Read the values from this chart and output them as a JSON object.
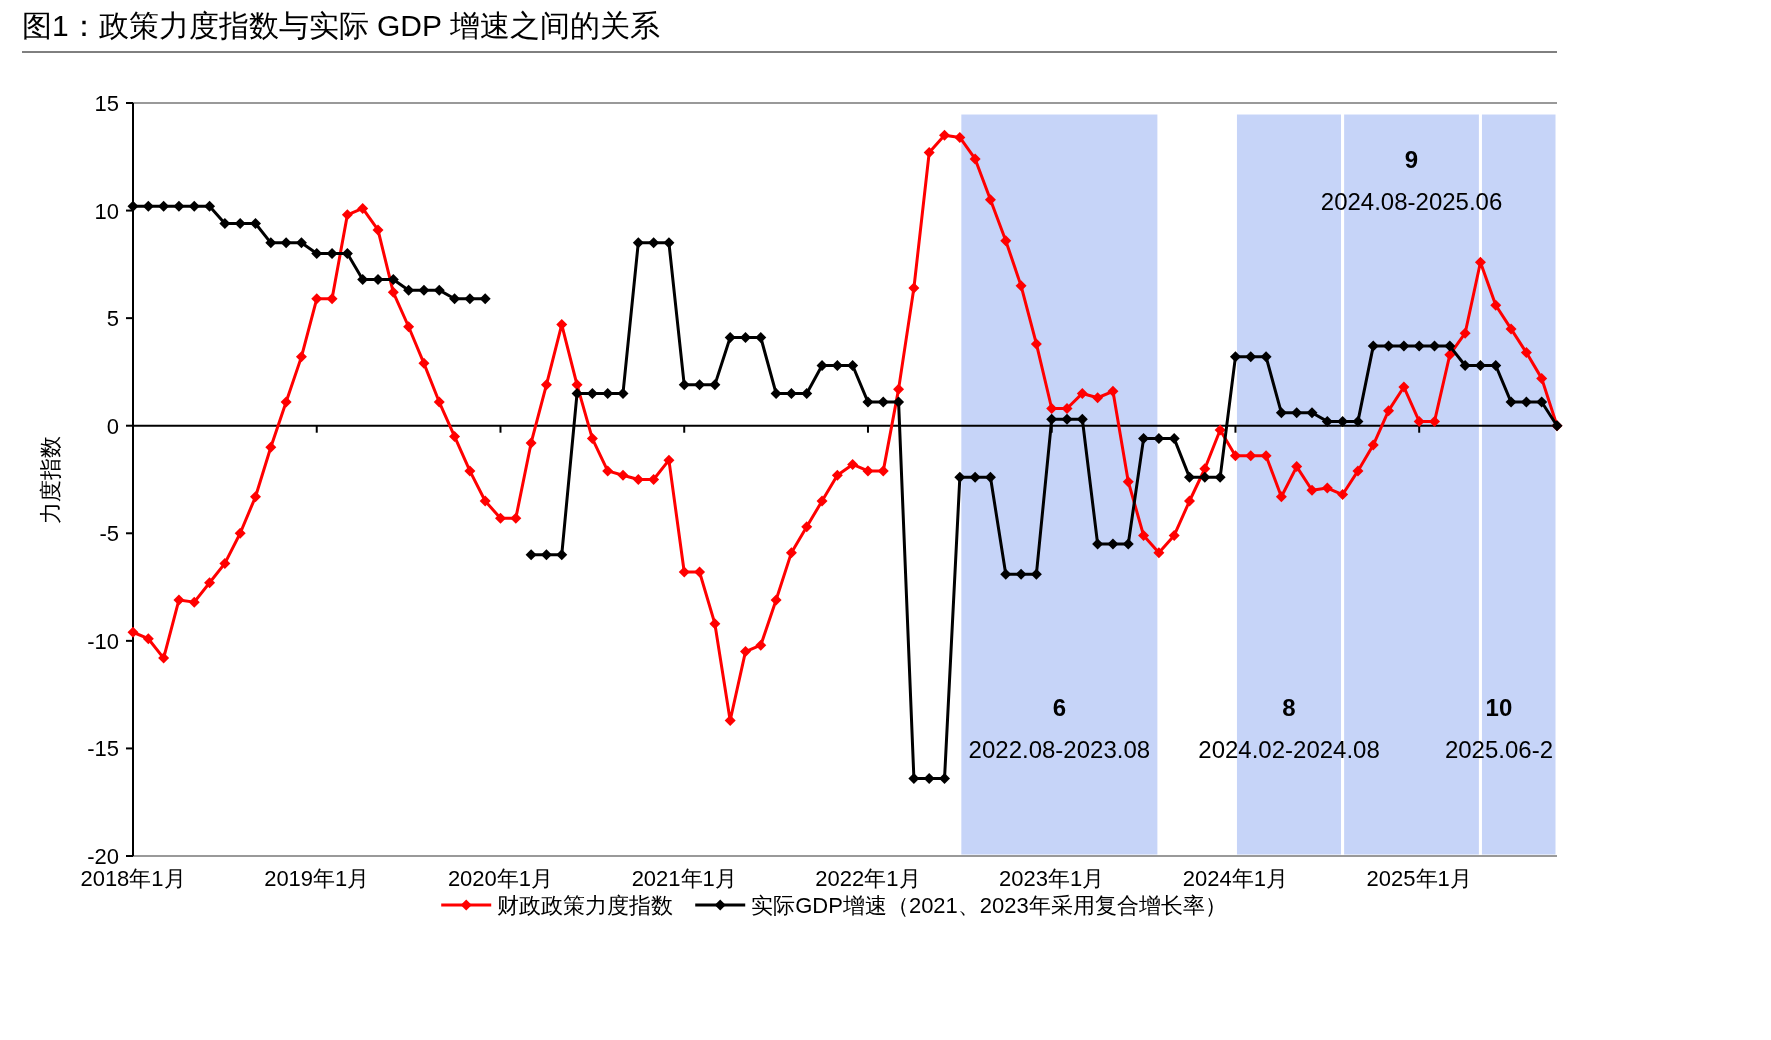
{
  "chart_data": {
    "type": "line",
    "title": "图1：政策力度指数与实际 GDP 增速之间的关系",
    "ylabel": "力度指数",
    "x": [
      "2018-01",
      "2018-02",
      "2018-03",
      "2018-04",
      "2018-05",
      "2018-06",
      "2018-07",
      "2018-08",
      "2018-09",
      "2018-10",
      "2018-11",
      "2018-12",
      "2019-01",
      "2019-02",
      "2019-03",
      "2019-04",
      "2019-05",
      "2019-06",
      "2019-07",
      "2019-08",
      "2019-09",
      "2019-10",
      "2019-11",
      "2019-12",
      "2020-01",
      "2020-02",
      "2020-03",
      "2020-04",
      "2020-05",
      "2020-06",
      "2020-07",
      "2020-08",
      "2020-09",
      "2020-10",
      "2020-11",
      "2020-12",
      "2021-01",
      "2021-02",
      "2021-03",
      "2021-04",
      "2021-05",
      "2021-06",
      "2021-07",
      "2021-08",
      "2021-09",
      "2021-10",
      "2021-11",
      "2021-12",
      "2022-01",
      "2022-02",
      "2022-03",
      "2022-04",
      "2022-05",
      "2022-06",
      "2022-07",
      "2022-08",
      "2022-09",
      "2022-10",
      "2022-11",
      "2022-12",
      "2023-01",
      "2023-02",
      "2023-03",
      "2023-04",
      "2023-05",
      "2023-06",
      "2023-07",
      "2023-08",
      "2023-09",
      "2023-10",
      "2023-11",
      "2023-12",
      "2024-01",
      "2024-02",
      "2024-03",
      "2024-04",
      "2024-05",
      "2024-06",
      "2024-07",
      "2024-08",
      "2024-09",
      "2024-10",
      "2024-11",
      "2024-12",
      "2025-01",
      "2025-02",
      "2025-03",
      "2025-04",
      "2025-05",
      "2025-06",
      "2025-07",
      "2025-08",
      "2025-09",
      "2025-10"
    ],
    "series": [
      {
        "name": "财政政策力度指数",
        "color": "#ff0000",
        "values": [
          -9.6,
          -9.9,
          -10.8,
          -8.1,
          -8.2,
          -7.3,
          -6.4,
          -5.0,
          -3.3,
          -1.0,
          1.1,
          3.2,
          5.9,
          5.9,
          9.8,
          10.1,
          9.1,
          6.2,
          4.6,
          2.9,
          1.1,
          -0.5,
          -2.1,
          -3.5,
          -4.3,
          -4.3,
          -0.8,
          1.9,
          4.7,
          1.9,
          -0.6,
          -2.1,
          -2.3,
          -2.5,
          -2.5,
          -1.6,
          -6.8,
          -6.8,
          -9.2,
          -13.7,
          -10.5,
          -10.2,
          -8.1,
          -5.9,
          -4.7,
          -3.5,
          -2.3,
          -1.8,
          -2.1,
          -2.1,
          1.7,
          6.4,
          12.7,
          13.5,
          13.4,
          12.4,
          10.5,
          8.6,
          6.5,
          3.8,
          0.8,
          0.8,
          1.5,
          1.3,
          1.6,
          -2.6,
          -5.1,
          -5.9,
          -5.1,
          -3.5,
          -2.0,
          -0.2,
          -1.4,
          -1.4,
          -1.4,
          -3.3,
          -1.9,
          -3.0,
          -2.9,
          -3.2,
          -2.1,
          -0.9,
          0.7,
          1.8,
          0.2,
          0.2,
          3.3,
          4.3,
          7.6,
          5.6,
          4.5,
          3.4,
          2.2,
          0
        ]
      },
      {
        "name": "实际GDP增速（2021、2023年采用复合增长率）",
        "color": "#000000",
        "values": [
          10.2,
          10.2,
          10.2,
          10.2,
          10.2,
          10.2,
          9.4,
          9.4,
          9.4,
          8.5,
          8.5,
          8.5,
          8.0,
          8.0,
          8.0,
          6.8,
          6.8,
          6.8,
          6.3,
          6.3,
          6.3,
          5.9,
          5.9,
          5.9,
          null,
          null,
          -6.0,
          -6.0,
          -6.0,
          1.5,
          1.5,
          1.5,
          1.5,
          8.5,
          8.5,
          8.5,
          1.9,
          1.9,
          1.9,
          4.1,
          4.1,
          4.1,
          1.5,
          1.5,
          1.5,
          2.8,
          2.8,
          2.8,
          1.1,
          1.1,
          1.1,
          -16.4,
          -16.4,
          -16.4,
          -2.4,
          -2.4,
          -2.4,
          -6.9,
          -6.9,
          -6.9,
          0.3,
          0.3,
          0.3,
          -5.5,
          -5.5,
          -5.5,
          -0.6,
          -0.6,
          -0.6,
          -2.4,
          -2.4,
          -2.4,
          3.2,
          3.2,
          3.2,
          0.6,
          0.6,
          0.6,
          0.2,
          0.2,
          0.2,
          3.7,
          3.7,
          3.7,
          3.7,
          3.7,
          3.7,
          2.8,
          2.8,
          2.8,
          1.1,
          1.1,
          1.1,
          0
        ]
      }
    ],
    "xlim": [
      "2018-01",
      "2025-10"
    ],
    "xticks": [
      {
        "value": "2018-01",
        "label": "2018年1月"
      },
      {
        "value": "2019-01",
        "label": "2019年1月"
      },
      {
        "value": "2020-01",
        "label": "2020年1月"
      },
      {
        "value": "2021-01",
        "label": "2021年1月"
      },
      {
        "value": "2022-01",
        "label": "2022年1月"
      },
      {
        "value": "2023-01",
        "label": "2023年1月"
      },
      {
        "value": "2024-01",
        "label": "2024年1月"
      },
      {
        "value": "2025-01",
        "label": "2025年1月"
      }
    ],
    "ylim": [
      -20,
      15
    ],
    "yticks": [
      -20,
      -15,
      -10,
      -5,
      0,
      5,
      10,
      15
    ],
    "bands": [
      {
        "axis": "x",
        "from": "2022-07",
        "to": "2023-08",
        "color": "#c6d4f8",
        "label": "6\n2022.08-2023.08"
      },
      {
        "axis": "x",
        "from": "2024-01",
        "to": "2024-08",
        "color": "#c6d4f8",
        "label": "8\n2024.02-2024.08"
      },
      {
        "axis": "x",
        "from": "2024-08",
        "to": "2025-05",
        "color": "#c6d4f8",
        "label": "9\n2024.08-2025.06"
      },
      {
        "axis": "x",
        "from": "2025-05",
        "to": "2025-10",
        "color": "#c6d4f8",
        "label": "10\n2025.06-2"
      }
    ],
    "legend": "bottom",
    "marker": "diamond",
    "line_style": "solid"
  }
}
